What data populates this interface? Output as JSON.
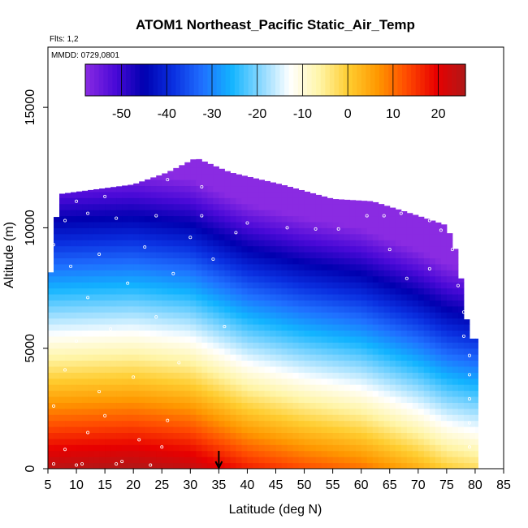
{
  "chart_data": {
    "type": "heatmap",
    "title": "ATOM1 Northeast_Pacific Static_Air_Temp",
    "flights_label": "Flts: 1,2",
    "dates_label": "MMDD: 0729,0801",
    "xlabel": "Latitude (deg N)",
    "ylabel": "Altitude (m)",
    "xlim": [
      5,
      85
    ],
    "ylim": [
      0,
      17500
    ],
    "x_ticks": [
      "5",
      "10",
      "15",
      "20",
      "25",
      "30",
      "35",
      "40",
      "45",
      "50",
      "55",
      "60",
      "65",
      "70",
      "75",
      "80",
      "85"
    ],
    "y_ticks": [
      "0",
      "5000",
      "10000",
      "15000"
    ],
    "grid": false,
    "colorbar": {
      "placement": "top-inside",
      "range": [
        -58,
        26
      ],
      "ticks": [
        "-50",
        "-40",
        "-30",
        "-20",
        "-10",
        "0",
        "10",
        "20"
      ],
      "colors": [
        "#8a2be2",
        "#4b0ad8",
        "#0000b0",
        "#0a2fe0",
        "#1f6fff",
        "#12b4ff",
        "#8ad8ff",
        "#ffffff",
        "#fff5a8",
        "#ffcd30",
        "#ff9800",
        "#ff4a00",
        "#e80000",
        "#b01818"
      ]
    },
    "marker_latitude": 35,
    "altitude_envelope": [
      {
        "lat": 5,
        "top": 6800
      },
      {
        "lat": 6,
        "top": 9500
      },
      {
        "lat": 7,
        "top": 11400
      },
      {
        "lat": 20,
        "top": 11800
      },
      {
        "lat": 26,
        "top": 12300
      },
      {
        "lat": 31,
        "top": 12900
      },
      {
        "lat": 37,
        "top": 12300
      },
      {
        "lat": 46,
        "top": 11800
      },
      {
        "lat": 55,
        "top": 11200
      },
      {
        "lat": 62,
        "top": 11100
      },
      {
        "lat": 70,
        "top": 10500
      },
      {
        "lat": 75,
        "top": 10100
      },
      {
        "lat": 77,
        "top": 8800
      },
      {
        "lat": 78,
        "top": 7000
      },
      {
        "lat": 79,
        "top": 5400
      },
      {
        "lat": 80,
        "top": 5400
      }
    ],
    "temperature_model": {
      "surface_temp_by_latitude": [
        {
          "lat": 5,
          "t": 25
        },
        {
          "lat": 20,
          "t": 26
        },
        {
          "lat": 30,
          "t": 24
        },
        {
          "lat": 40,
          "t": 17
        },
        {
          "lat": 50,
          "t": 13
        },
        {
          "lat": 60,
          "t": 10
        },
        {
          "lat": 70,
          "t": 4
        },
        {
          "lat": 75,
          "t": 0
        },
        {
          "lat": 80,
          "t": -2
        }
      ],
      "lapse_rate_c_per_km": 6.8,
      "min_temp": -58
    },
    "sample_points": [
      {
        "lat": 6,
        "alt": 200
      },
      {
        "lat": 8,
        "alt": 800
      },
      {
        "lat": 10,
        "alt": 150
      },
      {
        "lat": 11,
        "alt": 200
      },
      {
        "lat": 12,
        "alt": 1500
      },
      {
        "lat": 15,
        "alt": 2200
      },
      {
        "lat": 17,
        "alt": 200
      },
      {
        "lat": 18,
        "alt": 300
      },
      {
        "lat": 21,
        "alt": 1200
      },
      {
        "lat": 23,
        "alt": 150
      },
      {
        "lat": 25,
        "alt": 900
      },
      {
        "lat": 26,
        "alt": 2000
      },
      {
        "lat": 14,
        "alt": 3200
      },
      {
        "lat": 8,
        "alt": 4100
      },
      {
        "lat": 20,
        "alt": 3800
      },
      {
        "lat": 10,
        "alt": 5300
      },
      {
        "lat": 16,
        "alt": 5800
      },
      {
        "lat": 24,
        "alt": 6300
      },
      {
        "lat": 12,
        "alt": 7100
      },
      {
        "lat": 19,
        "alt": 7700
      },
      {
        "lat": 27,
        "alt": 8100
      },
      {
        "lat": 9,
        "alt": 8400
      },
      {
        "lat": 14,
        "alt": 8900
      },
      {
        "lat": 22,
        "alt": 9200
      },
      {
        "lat": 30,
        "alt": 9600
      },
      {
        "lat": 38,
        "alt": 9800
      },
      {
        "lat": 8,
        "alt": 10300
      },
      {
        "lat": 12,
        "alt": 10600
      },
      {
        "lat": 17,
        "alt": 10400
      },
      {
        "lat": 24,
        "alt": 10500
      },
      {
        "lat": 32,
        "alt": 10500
      },
      {
        "lat": 40,
        "alt": 10200
      },
      {
        "lat": 47,
        "alt": 10000
      },
      {
        "lat": 52,
        "alt": 9950
      },
      {
        "lat": 56,
        "alt": 9950
      },
      {
        "lat": 61,
        "alt": 10500
      },
      {
        "lat": 64,
        "alt": 10500
      },
      {
        "lat": 67,
        "alt": 10600
      },
      {
        "lat": 70,
        "alt": 10700
      },
      {
        "lat": 72,
        "alt": 10300
      },
      {
        "lat": 74,
        "alt": 9900
      },
      {
        "lat": 76,
        "alt": 9100
      },
      {
        "lat": 78,
        "alt": 8300
      },
      {
        "lat": 77,
        "alt": 7600
      },
      {
        "lat": 78,
        "alt": 6500
      },
      {
        "lat": 78,
        "alt": 5500
      },
      {
        "lat": 79,
        "alt": 4700
      },
      {
        "lat": 79,
        "alt": 3900
      },
      {
        "lat": 79,
        "alt": 2900
      },
      {
        "lat": 79,
        "alt": 1900
      },
      {
        "lat": 79,
        "alt": 900
      },
      {
        "lat": 26,
        "alt": 12000
      },
      {
        "lat": 29,
        "alt": 12800
      },
      {
        "lat": 32,
        "alt": 11700
      },
      {
        "lat": 20,
        "alt": 12000
      },
      {
        "lat": 15,
        "alt": 11300
      },
      {
        "lat": 10,
        "alt": 11100
      },
      {
        "lat": 6,
        "alt": 9300
      },
      {
        "lat": 5,
        "alt": 5200
      },
      {
        "lat": 6,
        "alt": 2600
      },
      {
        "lat": 34,
        "alt": 8700
      },
      {
        "lat": 28,
        "alt": 4400
      },
      {
        "lat": 36,
        "alt": 5900
      },
      {
        "lat": 68,
        "alt": 7900
      },
      {
        "lat": 72,
        "alt": 8300
      },
      {
        "lat": 65,
        "alt": 9100
      }
    ]
  }
}
